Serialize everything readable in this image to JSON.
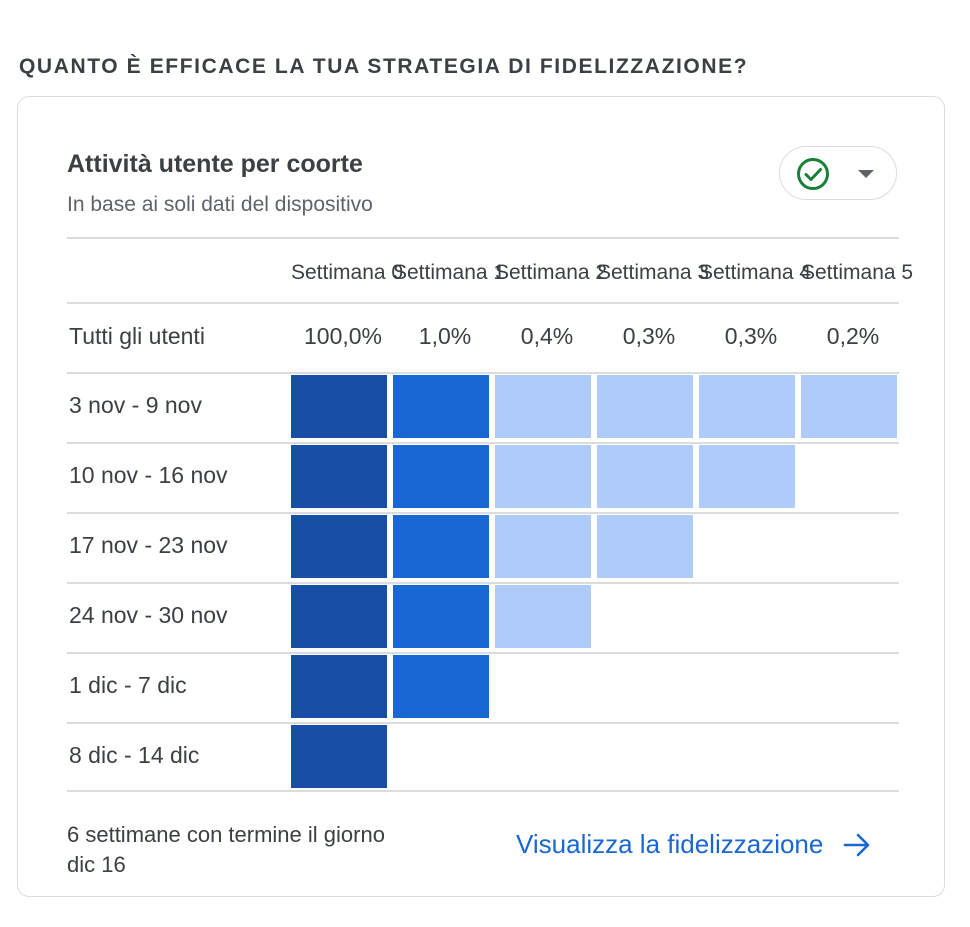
{
  "section_title": "QUANTO È EFFICACE LA TUA STRATEGIA DI FIDELIZZAZIONE?",
  "card": {
    "title": "Attività utente per coorte",
    "subtitle": "In base ai soli dati del dispositivo",
    "filter_icon": "check-circle-icon",
    "dropdown_icon": "caret-down-icon"
  },
  "table": {
    "columns": [
      "Settimana 0",
      "Settimana 1",
      "Settimana 2",
      "Settimana 3",
      "Settimana 4",
      "Settimana 5"
    ],
    "all_users_label": "Tutti gli utenti",
    "all_users_values": [
      "100,0%",
      "1,0%",
      "0,4%",
      "0,3%",
      "0,3%",
      "0,2%"
    ],
    "rows": [
      {
        "label": "3 nov - 9 nov",
        "cells": [
          "dark",
          "mid",
          "light",
          "light",
          "light",
          "light"
        ]
      },
      {
        "label": "10 nov - 16 nov",
        "cells": [
          "dark",
          "mid",
          "light",
          "light",
          "light"
        ]
      },
      {
        "label": "17 nov - 23 nov",
        "cells": [
          "dark",
          "mid",
          "light",
          "light"
        ]
      },
      {
        "label": "24 nov - 30 nov",
        "cells": [
          "dark",
          "mid",
          "light"
        ]
      },
      {
        "label": "1 dic - 7 dic",
        "cells": [
          "dark",
          "mid"
        ]
      },
      {
        "label": "8 dic - 14 dic",
        "cells": [
          "dark"
        ]
      }
    ],
    "colors": {
      "dark": "#174ea6",
      "mid": "#1967d2",
      "light": "#aecbfa"
    }
  },
  "footer": {
    "note": "6 settimane con termine il giorno dic 16",
    "link_label": "Visualizza la fidelizzazione",
    "link_icon": "arrow-right-icon"
  }
}
